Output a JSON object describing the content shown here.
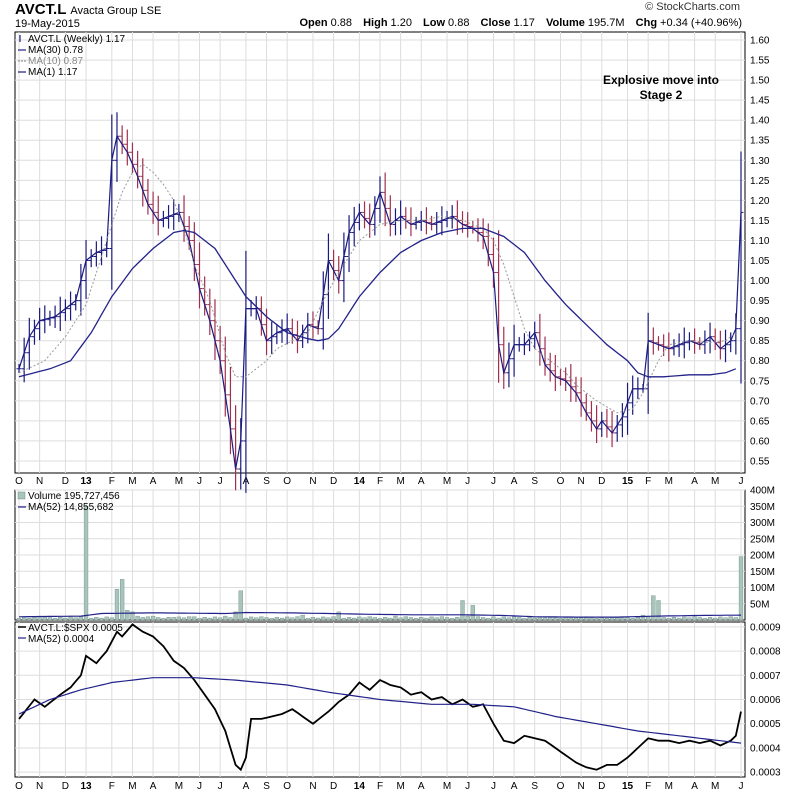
{
  "header": {
    "symbol": "AVCT.L",
    "company": "Avacta Group LSE",
    "date": "19-May-2015",
    "brand": "© StockCharts.com",
    "open_label": "Open",
    "open": "0.88",
    "high_label": "High",
    "high": "1.20",
    "low_label": "Low",
    "low": "0.88",
    "close_label": "Close",
    "close": "1.17",
    "volume_label": "Volume",
    "volume": "195.7M",
    "chg_label": "Chg",
    "chg": "+0.34 (+40.96%)"
  },
  "chart_data": [
    {
      "type": "ohlc",
      "legend": [
        "AVCT.L (Weekly) 1.17",
        "MA(30) 0.78",
        "MA(10) 0.87",
        "MA(1) 1.17"
      ],
      "annotation": [
        "Explosive move into",
        "Stage 2"
      ],
      "ylim": [
        0.52,
        1.62
      ],
      "yticks": [
        0.55,
        0.6,
        0.65,
        0.7,
        0.75,
        0.8,
        0.85,
        0.9,
        0.95,
        1.0,
        1.05,
        1.1,
        1.15,
        1.2,
        1.25,
        1.3,
        1.35,
        1.4,
        1.45,
        1.5,
        1.55,
        1.6
      ],
      "ytick_labels": [
        "0.55",
        "0.60",
        "0.65",
        "0.70",
        "0.75",
        "0.80",
        "0.85",
        "0.90",
        "0.95",
        "1.00",
        "1.05",
        "1.10",
        "1.15",
        "1.20",
        "1.25",
        "1.30",
        "1.35",
        "1.40",
        "1.45",
        "1.50",
        "1.55",
        "1.60"
      ],
      "weeks": 141,
      "months": [
        "O",
        "N",
        "D",
        "13",
        "F",
        "M",
        "A",
        "M",
        "J",
        "J",
        "A",
        "S",
        "O",
        "N",
        "D",
        "14",
        "F",
        "M",
        "A",
        "M",
        "J",
        "J",
        "A",
        "S",
        "O",
        "N",
        "D",
        "15",
        "F",
        "M",
        "A",
        "M",
        "J"
      ],
      "month_weeks": [
        0,
        4,
        9,
        13,
        18,
        22,
        26,
        31,
        35,
        39,
        44,
        48,
        52,
        57,
        61,
        66,
        70,
        74,
        78,
        83,
        87,
        92,
        96,
        100,
        105,
        109,
        113,
        118,
        122,
        126,
        131,
        135,
        140
      ],
      "close_keys": [
        [
          0,
          0.78
        ],
        [
          2,
          0.86
        ],
        [
          4,
          0.9
        ],
        [
          7,
          0.91
        ],
        [
          9,
          0.93
        ],
        [
          11,
          0.95
        ],
        [
          13,
          1.05
        ],
        [
          15,
          1.07
        ],
        [
          17,
          1.08
        ],
        [
          18,
          1.3
        ],
        [
          19,
          1.36
        ],
        [
          21,
          1.32
        ],
        [
          23,
          1.26
        ],
        [
          25,
          1.19
        ],
        [
          27,
          1.15
        ],
        [
          29,
          1.16
        ],
        [
          31,
          1.17
        ],
        [
          33,
          1.1
        ],
        [
          35,
          0.98
        ],
        [
          37,
          0.9
        ],
        [
          39,
          0.8
        ],
        [
          41,
          0.63
        ],
        [
          42,
          0.53
        ],
        [
          43,
          0.6
        ],
        [
          44,
          0.93
        ],
        [
          46,
          0.93
        ],
        [
          48,
          0.85
        ],
        [
          50,
          0.87
        ],
        [
          52,
          0.88
        ],
        [
          54,
          0.85
        ],
        [
          56,
          0.89
        ],
        [
          58,
          0.88
        ],
        [
          60,
          1.05
        ],
        [
          62,
          1.0
        ],
        [
          64,
          1.12
        ],
        [
          66,
          1.17
        ],
        [
          68,
          1.14
        ],
        [
          70,
          1.22
        ],
        [
          72,
          1.14
        ],
        [
          74,
          1.16
        ],
        [
          76,
          1.14
        ],
        [
          78,
          1.15
        ],
        [
          80,
          1.14
        ],
        [
          82,
          1.15
        ],
        [
          84,
          1.16
        ],
        [
          86,
          1.14
        ],
        [
          88,
          1.13
        ],
        [
          90,
          1.11
        ],
        [
          92,
          1.02
        ],
        [
          93,
          0.84
        ],
        [
          94,
          0.77
        ],
        [
          96,
          0.84
        ],
        [
          98,
          0.84
        ],
        [
          100,
          0.87
        ],
        [
          102,
          0.79
        ],
        [
          104,
          0.76
        ],
        [
          106,
          0.75
        ],
        [
          108,
          0.72
        ],
        [
          110,
          0.67
        ],
        [
          112,
          0.63
        ],
        [
          113,
          0.65
        ],
        [
          115,
          0.62
        ],
        [
          117,
          0.66
        ],
        [
          119,
          0.73
        ],
        [
          121,
          0.73
        ],
        [
          122,
          0.85
        ],
        [
          124,
          0.84
        ],
        [
          126,
          0.83
        ],
        [
          128,
          0.84
        ],
        [
          130,
          0.85
        ],
        [
          132,
          0.84
        ],
        [
          134,
          0.86
        ],
        [
          136,
          0.83
        ],
        [
          137,
          0.84
        ],
        [
          138,
          0.85
        ],
        [
          139,
          0.88
        ],
        [
          140,
          1.17
        ]
      ],
      "ma30_keys": [
        [
          0,
          0.76
        ],
        [
          6,
          0.78
        ],
        [
          10,
          0.8
        ],
        [
          14,
          0.87
        ],
        [
          18,
          0.96
        ],
        [
          22,
          1.03
        ],
        [
          26,
          1.08
        ],
        [
          30,
          1.12
        ],
        [
          32,
          1.125
        ],
        [
          34,
          1.12
        ],
        [
          36,
          1.1
        ],
        [
          38,
          1.08
        ],
        [
          40,
          1.04
        ],
        [
          42,
          1.0
        ],
        [
          44,
          0.96
        ],
        [
          48,
          0.91
        ],
        [
          52,
          0.87
        ],
        [
          56,
          0.855
        ],
        [
          58,
          0.85
        ],
        [
          60,
          0.855
        ],
        [
          62,
          0.88
        ],
        [
          64,
          0.92
        ],
        [
          66,
          0.96
        ],
        [
          70,
          1.02
        ],
        [
          74,
          1.07
        ],
        [
          78,
          1.1
        ],
        [
          82,
          1.12
        ],
        [
          86,
          1.13
        ],
        [
          90,
          1.13
        ],
        [
          94,
          1.11
        ],
        [
          98,
          1.07
        ],
        [
          102,
          1.0
        ],
        [
          106,
          0.94
        ],
        [
          110,
          0.89
        ],
        [
          114,
          0.84
        ],
        [
          118,
          0.8
        ],
        [
          120,
          0.77
        ],
        [
          122,
          0.76
        ],
        [
          125,
          0.76
        ],
        [
          130,
          0.765
        ],
        [
          134,
          0.765
        ],
        [
          137,
          0.77
        ],
        [
          139,
          0.78
        ]
      ],
      "ma10_keys": [
        [
          0,
          0.77
        ],
        [
          5,
          0.8
        ],
        [
          9,
          0.86
        ],
        [
          13,
          0.94
        ],
        [
          17,
          1.1
        ],
        [
          20,
          1.22
        ],
        [
          22,
          1.27
        ],
        [
          24,
          1.29
        ],
        [
          26,
          1.27
        ],
        [
          28,
          1.24
        ],
        [
          30,
          1.2
        ],
        [
          32,
          1.13
        ],
        [
          34,
          1.04
        ],
        [
          37,
          0.95
        ],
        [
          40,
          0.82
        ],
        [
          42,
          0.76
        ],
        [
          44,
          0.76
        ],
        [
          46,
          0.78
        ],
        [
          48,
          0.8
        ],
        [
          50,
          0.83
        ],
        [
          53,
          0.85
        ],
        [
          56,
          0.87
        ],
        [
          59,
          0.95
        ],
        [
          62,
          1.02
        ],
        [
          64,
          1.06
        ],
        [
          66,
          1.1
        ],
        [
          70,
          1.14
        ],
        [
          74,
          1.15
        ],
        [
          78,
          1.15
        ],
        [
          82,
          1.16
        ],
        [
          86,
          1.15
        ],
        [
          90,
          1.13
        ],
        [
          92,
          1.1
        ],
        [
          94,
          1.04
        ],
        [
          96,
          0.96
        ],
        [
          98,
          0.88
        ],
        [
          100,
          0.83
        ],
        [
          102,
          0.81
        ],
        [
          104,
          0.79
        ],
        [
          106,
          0.77
        ],
        [
          108,
          0.74
        ],
        [
          112,
          0.7
        ],
        [
          116,
          0.67
        ],
        [
          119,
          0.68
        ],
        [
          121,
          0.72
        ],
        [
          124,
          0.8
        ],
        [
          126,
          0.84
        ],
        [
          130,
          0.85
        ],
        [
          134,
          0.845
        ],
        [
          137,
          0.85
        ],
        [
          139,
          0.87
        ]
      ]
    },
    {
      "type": "bar",
      "legend": [
        "Volume 195,727,456",
        "MA(52) 14,855,682"
      ],
      "ylim": [
        0,
        400
      ],
      "yticks": [
        50,
        100,
        150,
        200,
        250,
        300,
        350,
        400
      ],
      "ytick_labels": [
        "50M",
        "100M",
        "150M",
        "200M",
        "250M",
        "300M",
        "350M",
        "400M"
      ],
      "spikes": [
        [
          13,
          350
        ],
        [
          19,
          95
        ],
        [
          20,
          125
        ],
        [
          21,
          30
        ],
        [
          22,
          25
        ],
        [
          23,
          12
        ],
        [
          24,
          8
        ],
        [
          25,
          10
        ],
        [
          26,
          12
        ],
        [
          30,
          8
        ],
        [
          34,
          10
        ],
        [
          40,
          12
        ],
        [
          42,
          25
        ],
        [
          43,
          90
        ],
        [
          47,
          10
        ],
        [
          55,
          15
        ],
        [
          62,
          25
        ],
        [
          64,
          8
        ],
        [
          73,
          12
        ],
        [
          86,
          60
        ],
        [
          87,
          12
        ],
        [
          88,
          45
        ],
        [
          92,
          10
        ],
        [
          107,
          10
        ],
        [
          121,
          15
        ],
        [
          123,
          75
        ],
        [
          124,
          60
        ],
        [
          140,
          195
        ]
      ],
      "baseline": 5,
      "ma52_keys": [
        [
          0,
          10
        ],
        [
          12,
          12
        ],
        [
          16,
          20
        ],
        [
          26,
          22
        ],
        [
          40,
          20
        ],
        [
          44,
          23
        ],
        [
          52,
          22
        ],
        [
          60,
          20
        ],
        [
          66,
          18
        ],
        [
          76,
          16
        ],
        [
          86,
          16
        ],
        [
          94,
          14
        ],
        [
          100,
          10
        ],
        [
          108,
          9
        ],
        [
          116,
          9
        ],
        [
          124,
          12
        ],
        [
          132,
          14
        ],
        [
          140,
          15
        ]
      ]
    },
    {
      "type": "line",
      "legend": [
        "AVCT.L:$SPX 0.0005",
        "MA(52) 0.0004"
      ],
      "ylim": [
        0.00028,
        0.00092
      ],
      "yticks": [
        0.0003,
        0.0004,
        0.0005,
        0.0006,
        0.0007,
        0.0008,
        0.0009
      ],
      "ytick_labels": [
        "0.0003",
        "0.0004",
        "0.0005",
        "0.0006",
        "0.0007",
        "0.0008",
        "0.0009"
      ],
      "ratio_keys": [
        [
          0,
          0.00052
        ],
        [
          3,
          0.0006
        ],
        [
          5,
          0.00057
        ],
        [
          8,
          0.00062
        ],
        [
          10,
          0.00065
        ],
        [
          12,
          0.0007
        ],
        [
          13,
          0.00078
        ],
        [
          15,
          0.00075
        ],
        [
          17,
          0.0008
        ],
        [
          19,
          0.00088
        ],
        [
          20,
          0.00086
        ],
        [
          22,
          0.00091
        ],
        [
          24,
          0.00088
        ],
        [
          26,
          0.00086
        ],
        [
          28,
          0.00082
        ],
        [
          30,
          0.00076
        ],
        [
          32,
          0.00073
        ],
        [
          34,
          0.00068
        ],
        [
          36,
          0.00062
        ],
        [
          38,
          0.00056
        ],
        [
          40,
          0.00047
        ],
        [
          42,
          0.00033
        ],
        [
          43,
          0.00031
        ],
        [
          44,
          0.00036
        ],
        [
          45,
          0.00052
        ],
        [
          47,
          0.00052
        ],
        [
          49,
          0.00053
        ],
        [
          51,
          0.00054
        ],
        [
          53,
          0.00056
        ],
        [
          55,
          0.00053
        ],
        [
          57,
          0.0005
        ],
        [
          60,
          0.00055
        ],
        [
          62,
          0.00059
        ],
        [
          64,
          0.00062
        ],
        [
          66,
          0.00067
        ],
        [
          68,
          0.00064
        ],
        [
          70,
          0.00068
        ],
        [
          72,
          0.00066
        ],
        [
          74,
          0.00065
        ],
        [
          76,
          0.00062
        ],
        [
          78,
          0.00063
        ],
        [
          80,
          0.0006
        ],
        [
          82,
          0.00061
        ],
        [
          84,
          0.00058
        ],
        [
          86,
          0.0006
        ],
        [
          88,
          0.00057
        ],
        [
          90,
          0.00058
        ],
        [
          92,
          0.0005
        ],
        [
          94,
          0.00043
        ],
        [
          96,
          0.00042
        ],
        [
          98,
          0.00045
        ],
        [
          100,
          0.00044
        ],
        [
          102,
          0.00043
        ],
        [
          104,
          0.0004
        ],
        [
          106,
          0.00037
        ],
        [
          108,
          0.00034
        ],
        [
          110,
          0.00032
        ],
        [
          112,
          0.00031
        ],
        [
          114,
          0.00033
        ],
        [
          116,
          0.00033
        ],
        [
          118,
          0.00036
        ],
        [
          120,
          0.0004
        ],
        [
          122,
          0.00044
        ],
        [
          124,
          0.00043
        ],
        [
          126,
          0.00043
        ],
        [
          128,
          0.00042
        ],
        [
          130,
          0.00043
        ],
        [
          132,
          0.00042
        ],
        [
          134,
          0.00043
        ],
        [
          136,
          0.00041
        ],
        [
          138,
          0.00043
        ],
        [
          139,
          0.00045
        ],
        [
          140,
          0.00055
        ]
      ],
      "ma52_keys": [
        [
          0,
          0.00054
        ],
        [
          6,
          0.0006
        ],
        [
          12,
          0.00064
        ],
        [
          18,
          0.00067
        ],
        [
          26,
          0.00069
        ],
        [
          34,
          0.00069
        ],
        [
          42,
          0.00068
        ],
        [
          52,
          0.00066
        ],
        [
          60,
          0.00063
        ],
        [
          70,
          0.0006
        ],
        [
          80,
          0.00058
        ],
        [
          88,
          0.00058
        ],
        [
          96,
          0.00057
        ],
        [
          104,
          0.00053
        ],
        [
          112,
          0.0005
        ],
        [
          120,
          0.00047
        ],
        [
          128,
          0.00045
        ],
        [
          136,
          0.00043
        ],
        [
          140,
          0.00042
        ]
      ]
    }
  ],
  "colors": {
    "price_up": "#1a1a80",
    "price_down": "#a0304e",
    "ma30": "#22228a",
    "ma10": "#999999",
    "volume_bar": "#a8c4bc",
    "volume_edge": "#6f8f86",
    "ratio": "#000000",
    "ratio_ma": "#22228a",
    "grid": "#dddddd"
  }
}
